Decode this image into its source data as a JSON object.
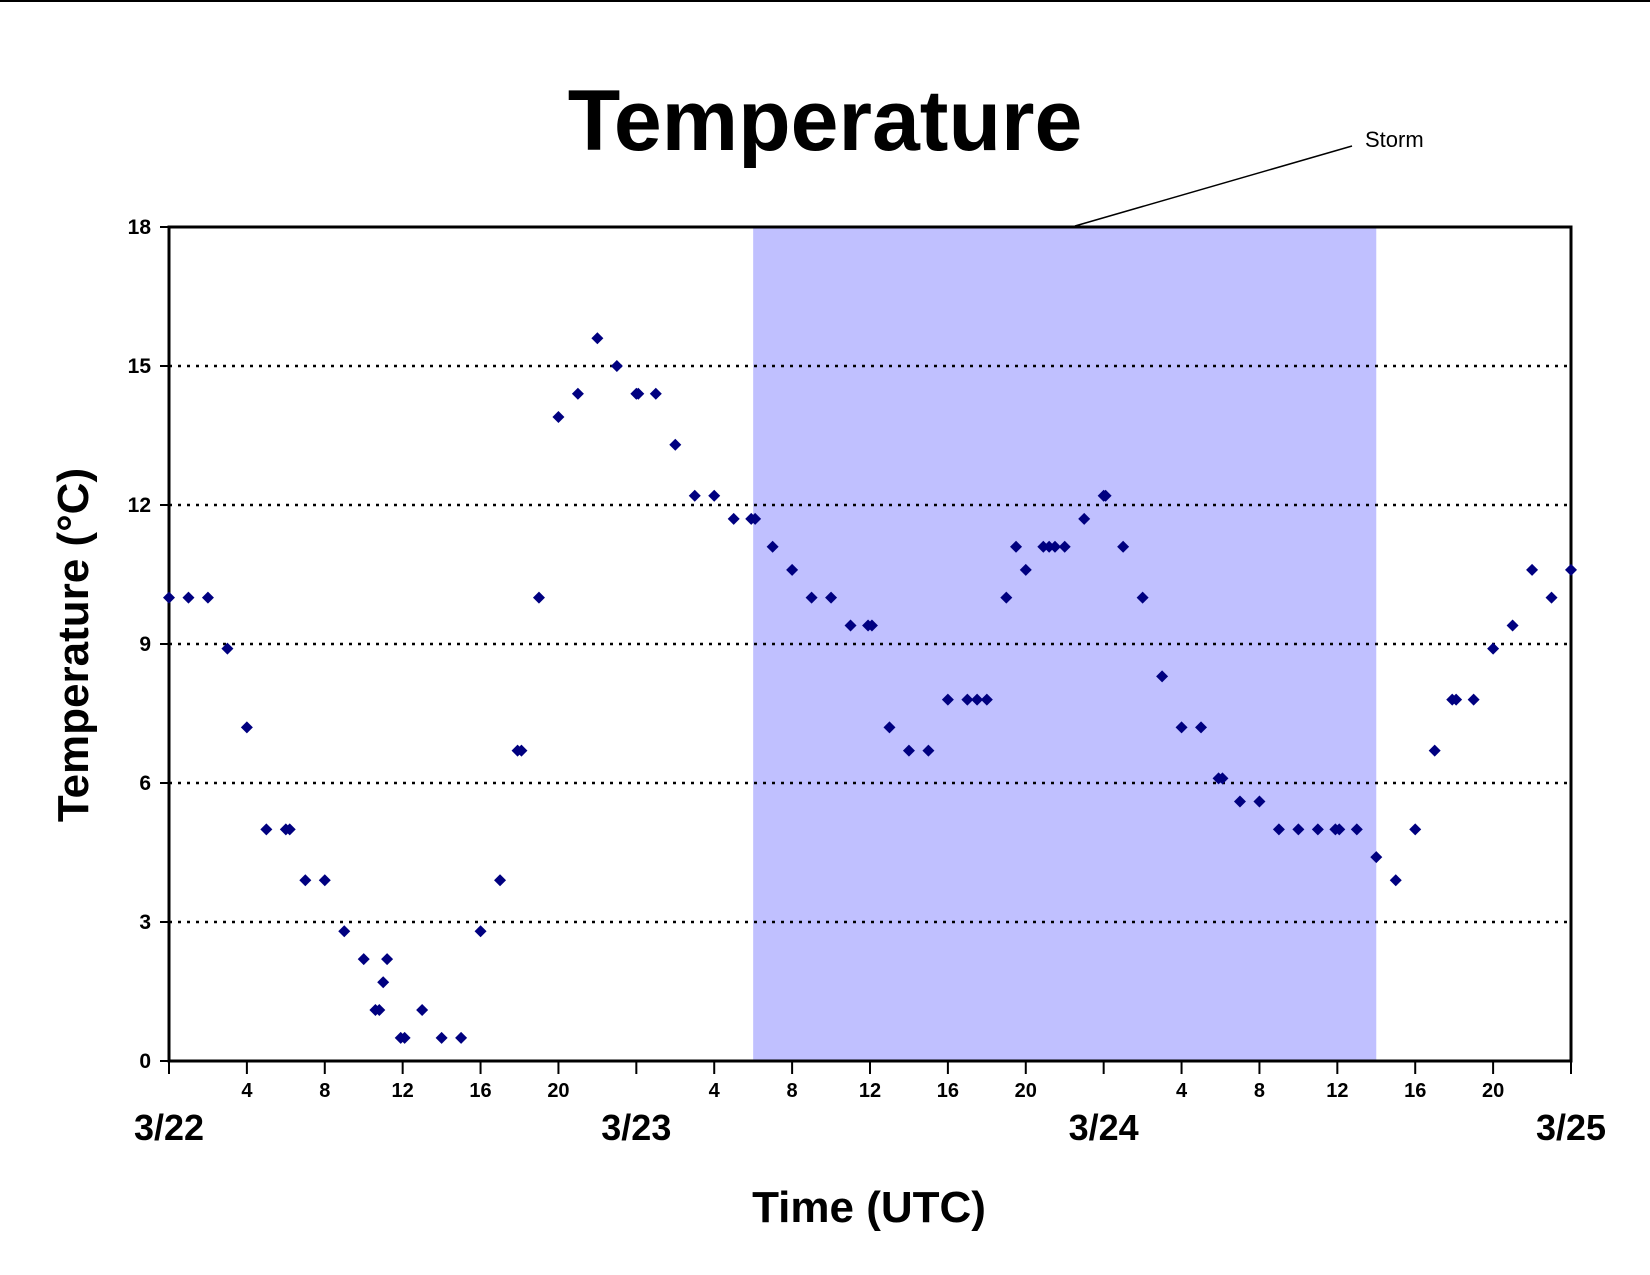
{
  "chart_data": {
    "type": "scatter",
    "title": "Temperature",
    "xlabel": "Time (UTC)",
    "ylabel": "Temperature (°C)",
    "ylim": [
      0,
      18
    ],
    "yticks": [
      0,
      3,
      6,
      9,
      12,
      15,
      18
    ],
    "xlim_hours": [
      0,
      72
    ],
    "xticks": [
      {
        "hour": 0,
        "label": ""
      },
      {
        "hour": 4,
        "label": "4"
      },
      {
        "hour": 8,
        "label": "8"
      },
      {
        "hour": 12,
        "label": "12"
      },
      {
        "hour": 16,
        "label": "16"
      },
      {
        "hour": 20,
        "label": "20"
      },
      {
        "hour": 24,
        "label": ""
      },
      {
        "hour": 28,
        "label": "4"
      },
      {
        "hour": 32,
        "label": "8"
      },
      {
        "hour": 36,
        "label": "12"
      },
      {
        "hour": 40,
        "label": "16"
      },
      {
        "hour": 44,
        "label": "20"
      },
      {
        "hour": 48,
        "label": ""
      },
      {
        "hour": 52,
        "label": "4"
      },
      {
        "hour": 56,
        "label": "8"
      },
      {
        "hour": 60,
        "label": "12"
      },
      {
        "hour": 64,
        "label": "16"
      },
      {
        "hour": 68,
        "label": "20"
      },
      {
        "hour": 72,
        "label": ""
      }
    ],
    "day_labels": [
      {
        "hour": 0,
        "label": "3/22"
      },
      {
        "hour": 24,
        "label": "3/23"
      },
      {
        "hour": 48,
        "label": "3/24"
      },
      {
        "hour": 72,
        "label": "3/25"
      }
    ],
    "grid": "horizontal dotted",
    "marker_color": "#000080",
    "shade_color": "#c0c0ff",
    "annotation": {
      "text": "Storm",
      "span_hours": [
        30,
        62
      ]
    },
    "series": [
      {
        "points": [
          [
            0,
            10
          ],
          [
            1,
            10
          ],
          [
            2,
            10
          ],
          [
            3,
            8.9
          ],
          [
            4,
            7.2
          ],
          [
            5,
            5
          ],
          [
            6,
            5
          ],
          [
            6.2,
            5
          ],
          [
            7,
            3.9
          ],
          [
            8,
            3.9
          ],
          [
            9,
            2.8
          ],
          [
            10,
            2.2
          ],
          [
            10.6,
            1.1
          ],
          [
            10.8,
            1.1
          ],
          [
            11,
            1.7
          ],
          [
            11.2,
            2.2
          ],
          [
            11.9,
            0.5
          ],
          [
            12.1,
            0.5
          ],
          [
            13,
            1.1
          ],
          [
            14,
            0.5
          ],
          [
            15,
            0.5
          ],
          [
            16,
            2.8
          ],
          [
            17,
            3.9
          ],
          [
            17.9,
            6.7
          ],
          [
            18.1,
            6.7
          ],
          [
            19,
            10
          ],
          [
            20,
            13.9
          ],
          [
            21,
            14.4
          ],
          [
            22,
            15.6
          ],
          [
            23,
            15
          ],
          [
            24,
            14.4
          ],
          [
            24.1,
            14.4
          ],
          [
            25,
            14.4
          ],
          [
            26,
            13.3
          ],
          [
            27,
            12.2
          ],
          [
            28,
            12.2
          ],
          [
            29,
            11.7
          ],
          [
            29.9,
            11.7
          ],
          [
            30.1,
            11.7
          ],
          [
            31,
            11.1
          ],
          [
            32,
            10.6
          ],
          [
            33,
            10
          ],
          [
            34,
            10
          ],
          [
            35,
            9.4
          ],
          [
            35.9,
            9.4
          ],
          [
            36.1,
            9.4
          ],
          [
            37,
            7.2
          ],
          [
            38,
            6.7
          ],
          [
            39,
            6.7
          ],
          [
            40,
            7.8
          ],
          [
            41,
            7.8
          ],
          [
            41.5,
            7.8
          ],
          [
            42,
            7.8
          ],
          [
            43,
            10
          ],
          [
            43.5,
            11.1
          ],
          [
            44,
            10.6
          ],
          [
            44.9,
            11.1
          ],
          [
            45.2,
            11.1
          ],
          [
            45.5,
            11.1
          ],
          [
            46,
            11.1
          ],
          [
            47,
            11.7
          ],
          [
            48,
            12.2
          ],
          [
            48.1,
            12.2
          ],
          [
            49,
            11.1
          ],
          [
            50,
            10
          ],
          [
            51,
            8.3
          ],
          [
            52,
            7.2
          ],
          [
            53,
            7.2
          ],
          [
            53.9,
            6.1
          ],
          [
            54.1,
            6.1
          ],
          [
            55,
            5.6
          ],
          [
            56,
            5.6
          ],
          [
            57,
            5
          ],
          [
            58,
            5
          ],
          [
            59,
            5
          ],
          [
            59.9,
            5
          ],
          [
            60.1,
            5
          ],
          [
            61,
            5
          ],
          [
            62,
            4.4
          ],
          [
            63,
            3.9
          ],
          [
            64,
            5
          ],
          [
            65,
            6.7
          ],
          [
            65.9,
            7.8
          ],
          [
            66.1,
            7.8
          ],
          [
            67,
            7.8
          ],
          [
            68,
            8.9
          ],
          [
            69,
            9.4
          ],
          [
            70,
            10.6
          ],
          [
            71,
            10
          ],
          [
            72,
            10.6
          ]
        ]
      }
    ]
  }
}
